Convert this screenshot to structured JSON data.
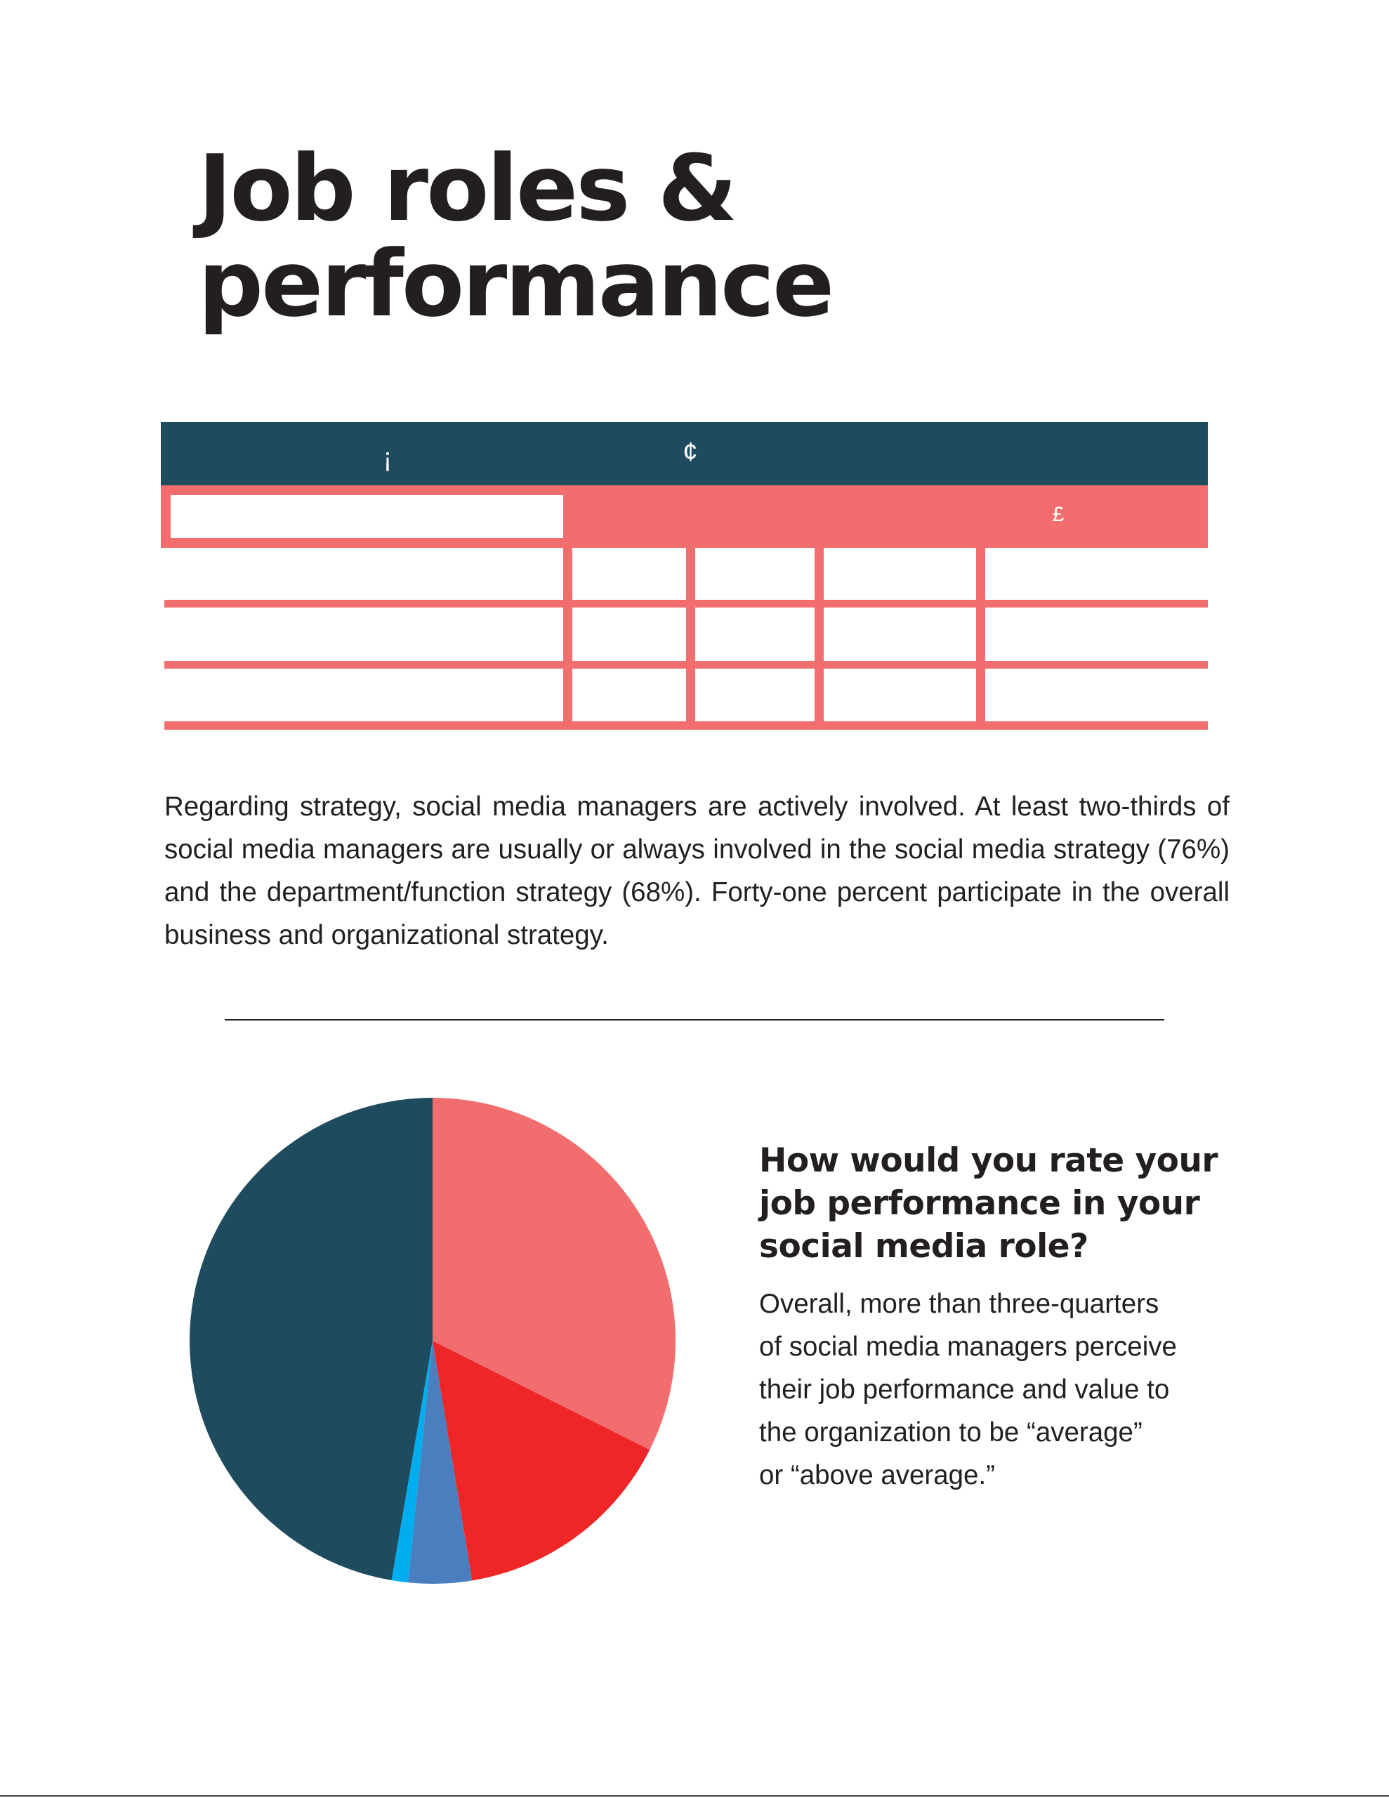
{
  "page": {
    "title_lines": [
      "Job roles &",
      "performance"
    ]
  },
  "table": {
    "header_glyphs": [
      "¡",
      "¢"
    ],
    "subheader_glyph": "£",
    "colors": {
      "header": "#1f4b5f",
      "accent": "#f26d6d",
      "text": "#ffffff"
    }
  },
  "strategy": {
    "paragraph": "Regarding strategy, social media managers are actively involved. At least two-thirds of social media managers are usually or always involved in the social media strategy (76%) and the department/function strategy (68%). Forty-one percent participate in the overall business and organizational strategy."
  },
  "performance": {
    "question_lines": [
      "How would you rate your",
      "job performance in your",
      "social media role?"
    ],
    "body_lines": [
      "Overall, more than three-quarters",
      "of social media managers perceive",
      "their job performance and value to",
      "the organization to be “average”",
      "or “above average.”"
    ]
  },
  "chart_data": {
    "type": "pie",
    "start_angle_deg": 90,
    "direction": "counterclockwise",
    "values": [
      47.3,
      1.1,
      4.2,
      15.0,
      32.4
    ],
    "colors": [
      "#1f4b5f",
      "#00aeef",
      "#4a7ebf",
      "#ee2628",
      "#f26d6d"
    ]
  }
}
